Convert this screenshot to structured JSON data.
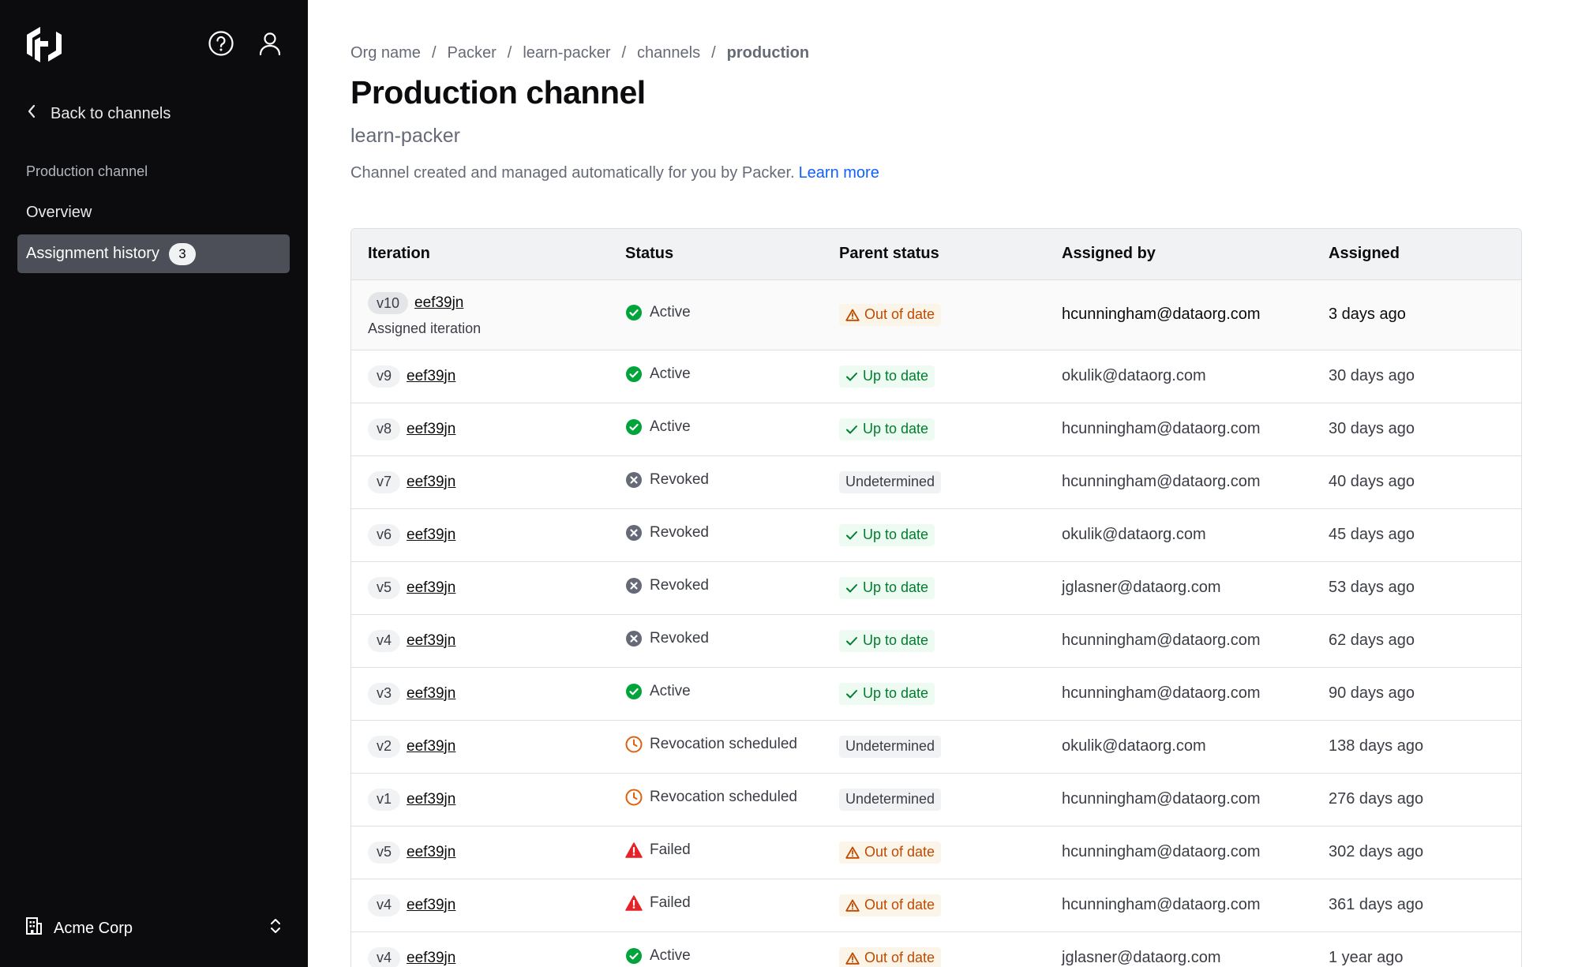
{
  "sidebar": {
    "back_label": "Back to channels",
    "section_heading": "Production channel",
    "items": [
      {
        "label": "Overview"
      },
      {
        "label": "Assignment history",
        "count": "3"
      }
    ],
    "org_name": "Acme Corp"
  },
  "breadcrumb": [
    "Org name",
    "Packer",
    "learn-packer",
    "channels",
    "production"
  ],
  "page": {
    "title": "Production channel",
    "subtitle": "learn-packer",
    "description": "Channel created and managed automatically for you by Packer.",
    "learn_more": "Learn more"
  },
  "table": {
    "headers": [
      "Iteration",
      "Status",
      "Parent status",
      "Assigned by",
      "Assigned"
    ],
    "rows": [
      {
        "version": "v10",
        "hash": "eef39jn",
        "note": "Assigned iteration",
        "status": "Active",
        "status_kind": "active",
        "parent": "Out of date",
        "parent_kind": "warn",
        "by": "hcunningham@dataorg.com",
        "when": "3 days ago"
      },
      {
        "version": "v9",
        "hash": "eef39jn",
        "status": "Active",
        "status_kind": "active",
        "parent": "Up to date",
        "parent_kind": "ok",
        "by": "okulik@dataorg.com",
        "when": "30 days ago"
      },
      {
        "version": "v8",
        "hash": "eef39jn",
        "status": "Active",
        "status_kind": "active",
        "parent": "Up to date",
        "parent_kind": "ok",
        "by": "hcunningham@dataorg.com",
        "when": "30 days ago"
      },
      {
        "version": "v7",
        "hash": "eef39jn",
        "status": "Revoked",
        "status_kind": "revoked",
        "parent": "Undetermined",
        "parent_kind": "neutral",
        "by": "hcunningham@dataorg.com",
        "when": "40 days ago"
      },
      {
        "version": "v6",
        "hash": "eef39jn",
        "status": "Revoked",
        "status_kind": "revoked",
        "parent": "Up to date",
        "parent_kind": "ok",
        "by": "okulik@dataorg.com",
        "when": "45 days ago"
      },
      {
        "version": "v5",
        "hash": "eef39jn",
        "status": "Revoked",
        "status_kind": "revoked",
        "parent": "Up to date",
        "parent_kind": "ok",
        "by": "jglasner@dataorg.com",
        "when": "53 days ago"
      },
      {
        "version": "v4",
        "hash": "eef39jn",
        "status": "Revoked",
        "status_kind": "revoked",
        "parent": "Up to date",
        "parent_kind": "ok",
        "by": "hcunningham@dataorg.com",
        "when": "62 days ago"
      },
      {
        "version": "v3",
        "hash": "eef39jn",
        "status": "Active",
        "status_kind": "active",
        "parent": "Up to date",
        "parent_kind": "ok",
        "by": "hcunningham@dataorg.com",
        "when": "90 days ago"
      },
      {
        "version": "v2",
        "hash": "eef39jn",
        "status": "Revocation scheduled",
        "status_kind": "scheduled",
        "parent": "Undetermined",
        "parent_kind": "neutral",
        "by": "okulik@dataorg.com",
        "when": "138 days ago"
      },
      {
        "version": "v1",
        "hash": "eef39jn",
        "status": "Revocation scheduled",
        "status_kind": "scheduled",
        "parent": "Undetermined",
        "parent_kind": "neutral",
        "by": "hcunningham@dataorg.com",
        "when": "276 days ago"
      },
      {
        "version": "v5",
        "hash": "eef39jn",
        "status": "Failed",
        "status_kind": "failed",
        "parent": "Out of date",
        "parent_kind": "warn",
        "by": "hcunningham@dataorg.com",
        "when": "302 days ago"
      },
      {
        "version": "v4",
        "hash": "eef39jn",
        "status": "Failed",
        "status_kind": "failed",
        "parent": "Out of date",
        "parent_kind": "warn",
        "by": "hcunningham@dataorg.com",
        "when": "361 days ago"
      },
      {
        "version": "v4",
        "hash": "eef39jn",
        "status": "Active",
        "status_kind": "active",
        "parent": "Out of date",
        "parent_kind": "warn",
        "by": "jglasner@dataorg.com",
        "when": "1 year ago"
      }
    ]
  },
  "icons": {
    "logo": "hashicorp-logo-icon",
    "help": "help-icon",
    "user": "user-icon",
    "back": "chevron-left-icon",
    "org": "building-icon",
    "switcher": "chevron-up-down-icon"
  },
  "colors": {
    "sidebar_bg": "#0c0c0e",
    "active_nav_bg": "#4c4f58",
    "link": "#1060ff",
    "active": "#00a43a",
    "revoked": "#656a76",
    "scheduled": "#e0610b",
    "failed": "#e52228",
    "warn_text": "#bd4a00",
    "ok_text": "#007d2d"
  }
}
